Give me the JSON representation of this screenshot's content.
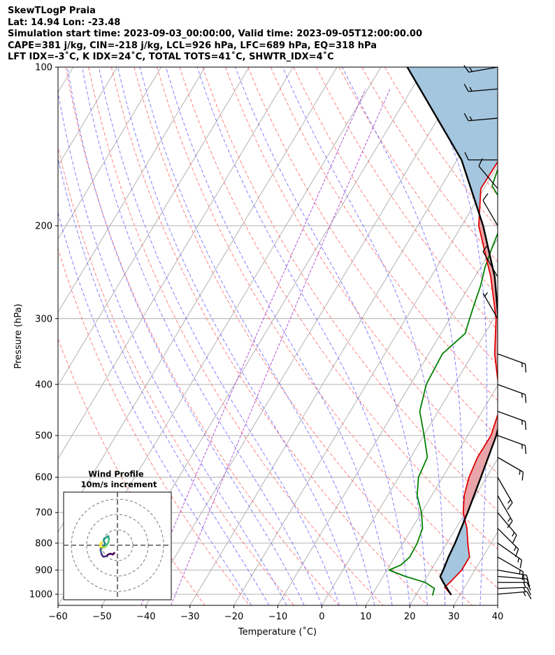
{
  "title_lines": [
    "SkewTLogP Praia",
    "Lat: 14.94   Lon: -23.48",
    "Simulation start time: 2023-09-03_00:00:00, Valid time: 2023-09-05T12:00:00.00",
    "CAPE=381 j/kg, CIN=-218 j/kg, LCL=926 hPa, LFC=689 hPa, EQ=318 hPa",
    "LFT IDX=-3˚C, K IDX=24˚C, TOTAL TOTS=41˚C, SHWTR_IDX=4˚C"
  ],
  "chart_data": {
    "type": "skewt-logp",
    "xlabel": "Temperature (˚C)",
    "ylabel": "Pressure (hPa)",
    "xlim": [
      -60,
      40
    ],
    "ylim": [
      1050,
      100
    ],
    "x_ticks": [
      -60,
      -50,
      -40,
      -30,
      -20,
      -10,
      0,
      10,
      20,
      30,
      40
    ],
    "x_tick_labels": [
      "−60",
      "−50",
      "−40",
      "−30",
      "−20",
      "−10",
      "0",
      "10",
      "20",
      "30",
      "40"
    ],
    "y_ticks": [
      100,
      200,
      300,
      400,
      500,
      600,
      700,
      800,
      900,
      1000
    ],
    "y_tick_labels": [
      "100",
      "200",
      "300",
      "400",
      "500",
      "600",
      "700",
      "800",
      "900",
      "1000"
    ],
    "colors": {
      "temperature": "#e00000",
      "dewpoint": "#008000",
      "parcel": "#000000",
      "cape_fill": "#e8a0a4",
      "cin_fill": "#9fc3dd",
      "dry_adiabat": "#ff6666",
      "moist_adiabat": "#6666ff",
      "mixing_ratio": "#aa44cc",
      "isotherm": "#aaaaaa"
    },
    "series": [
      {
        "name": "Temperature",
        "pressure": [
          1003,
          970,
          950,
          925,
          900,
          850,
          800,
          750,
          700,
          650,
          600,
          550,
          500,
          450,
          400,
          350,
          300,
          250,
          200,
          170,
          150,
          125,
          110,
          100
        ],
        "values": [
          28,
          25.5,
          26,
          26.5,
          27,
          27,
          24.7,
          22.5,
          19.5,
          17.4,
          16,
          15.2,
          15.3,
          13.8,
          10,
          5,
          0.5,
          -6.4,
          -16.1,
          -20.7,
          -20.5,
          -24,
          -27,
          -29
        ]
      },
      {
        "name": "Dewpoint",
        "pressure": [
          1005,
          975,
          950,
          925,
          900,
          880,
          850,
          800,
          750,
          700,
          650,
          600,
          550,
          500,
          450,
          400,
          350,
          320,
          300,
          280,
          260,
          240,
          220,
          200,
          180,
          168,
          155,
          143,
          132,
          115,
          100
        ],
        "values": [
          23.8,
          23.3,
          20.4,
          15,
          10.5,
          12.5,
          13.4,
          13.2,
          12.4,
          10,
          6.7,
          4.5,
          3.8,
          0.1,
          -4.2,
          -6.4,
          -6.9,
          -4.5,
          -5.5,
          -6.5,
          -7.5,
          -9,
          -10.1,
          -11.1,
          -14.2,
          -18.5,
          -19.6,
          -18.5,
          -18.8,
          -20.4,
          -24.3
        ]
      },
      {
        "name": "Parcel",
        "pressure": [
          1003,
          950,
          926,
          900,
          850,
          800,
          700,
          600,
          500,
          400,
          318,
          300,
          250,
          200,
          150,
          100
        ],
        "values": [
          28,
          24.5,
          23,
          22.8,
          22.2,
          21.8,
          20.5,
          18.7,
          16.5,
          12.5,
          5.5,
          1,
          -5.5,
          -15.1,
          -29,
          -54
        ]
      }
    ],
    "wind_barbs": [
      {
        "pressure": 1000,
        "speed_kt": 15,
        "direction_deg": 85
      },
      {
        "pressure": 975,
        "speed_kt": 15,
        "direction_deg": 88
      },
      {
        "pressure": 950,
        "speed_kt": 15,
        "direction_deg": 90
      },
      {
        "pressure": 925,
        "speed_kt": 15,
        "direction_deg": 95
      },
      {
        "pressure": 900,
        "speed_kt": 15,
        "direction_deg": 100
      },
      {
        "pressure": 850,
        "speed_kt": 15,
        "direction_deg": 120
      },
      {
        "pressure": 800,
        "speed_kt": 15,
        "direction_deg": 125
      },
      {
        "pressure": 750,
        "speed_kt": 15,
        "direction_deg": 135
      },
      {
        "pressure": 700,
        "speed_kt": 15,
        "direction_deg": 140
      },
      {
        "pressure": 650,
        "speed_kt": 15,
        "direction_deg": 150
      },
      {
        "pressure": 600,
        "speed_kt": 15,
        "direction_deg": 150
      },
      {
        "pressure": 550,
        "speed_kt": 15,
        "direction_deg": 120
      },
      {
        "pressure": 500,
        "speed_kt": 15,
        "direction_deg": 110
      },
      {
        "pressure": 450,
        "speed_kt": 15,
        "direction_deg": 110
      },
      {
        "pressure": 400,
        "speed_kt": 15,
        "direction_deg": 110
      },
      {
        "pressure": 350,
        "speed_kt": 15,
        "direction_deg": 110
      },
      {
        "pressure": 300,
        "speed_kt": 5,
        "direction_deg": 330
      },
      {
        "pressure": 250,
        "speed_kt": 10,
        "direction_deg": 330
      },
      {
        "pressure": 200,
        "speed_kt": 10,
        "direction_deg": 330
      },
      {
        "pressure": 170,
        "speed_kt": 10,
        "direction_deg": 320
      },
      {
        "pressure": 150,
        "speed_kt": 10,
        "direction_deg": 270
      },
      {
        "pressure": 125,
        "speed_kt": 15,
        "direction_deg": 265
      },
      {
        "pressure": 110,
        "speed_kt": 15,
        "direction_deg": 265
      },
      {
        "pressure": 100,
        "speed_kt": 15,
        "direction_deg": 260
      }
    ],
    "hodograph": {
      "title": "Wind Profile",
      "subtitle": "10m/s increment",
      "ring_step_ms": 10,
      "rings": 3,
      "u": [
        -2,
        -3,
        -4.5,
        -6,
        -7,
        -9,
        -10,
        -10.5,
        -11,
        -10.5,
        -9,
        -8,
        -8.5,
        -9,
        -8.5,
        -7.5,
        -6,
        -5.5,
        -6,
        -7,
        -8,
        -8.5,
        -9.5,
        -10.2,
        -11.3,
        -11,
        -10
      ],
      "v": [
        -5,
        -6,
        -5.5,
        -6,
        -7,
        -7.5,
        -6.5,
        -5,
        -3,
        -1,
        -0.5,
        1,
        2,
        3,
        4,
        5,
        6,
        4,
        1.5,
        0,
        -1,
        -1.5,
        -1.2,
        -1,
        -1,
        1,
        2
      ]
    }
  }
}
